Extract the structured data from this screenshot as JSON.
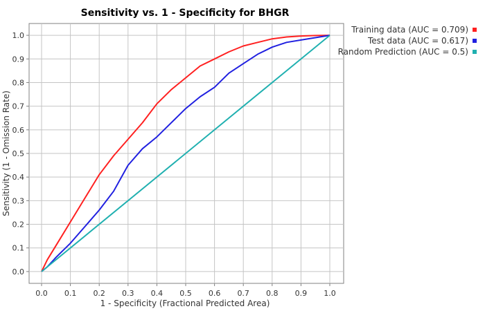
{
  "chart_data": {
    "type": "line",
    "title": "Sensitivity vs. 1 - Specificity for BHGR",
    "xlabel": "1 - Specificity  (Fractional Predicted Area)",
    "ylabel": "Sensitivity  (1 - Omission Rate)",
    "xlim": [
      0.0,
      1.0
    ],
    "ylim": [
      -0.05,
      1.05
    ],
    "x_ticks": [
      "0.0",
      "0.1",
      "0.2",
      "0.3",
      "0.4",
      "0.5",
      "0.6",
      "0.7",
      "0.8",
      "0.9",
      "1.0"
    ],
    "y_ticks": [
      "0.0",
      "0.1",
      "0.2",
      "0.3",
      "0.4",
      "0.5",
      "0.6",
      "0.7",
      "0.8",
      "0.9",
      "1.0"
    ],
    "grid": true,
    "legend_position": "right",
    "series": [
      {
        "name": "Training data (AUC = 0.709)",
        "color": "#ff2020",
        "points": [
          [
            0,
            0
          ],
          [
            0.02,
            0.05
          ],
          [
            0.05,
            0.11
          ],
          [
            0.1,
            0.21
          ],
          [
            0.15,
            0.31
          ],
          [
            0.2,
            0.41
          ],
          [
            0.25,
            0.49
          ],
          [
            0.3,
            0.56
          ],
          [
            0.35,
            0.63
          ],
          [
            0.4,
            0.71
          ],
          [
            0.45,
            0.77
          ],
          [
            0.5,
            0.82
          ],
          [
            0.55,
            0.87
          ],
          [
            0.6,
            0.9
          ],
          [
            0.65,
            0.93
          ],
          [
            0.7,
            0.955
          ],
          [
            0.75,
            0.97
          ],
          [
            0.8,
            0.985
          ],
          [
            0.85,
            0.993
          ],
          [
            0.9,
            0.997
          ],
          [
            0.95,
            0.999
          ],
          [
            1.0,
            1.0
          ]
        ]
      },
      {
        "name": "Test data (AUC = 0.617)",
        "color": "#2020e0",
        "points": [
          [
            0,
            0
          ],
          [
            0.02,
            0.02
          ],
          [
            0.05,
            0.06
          ],
          [
            0.1,
            0.12
          ],
          [
            0.15,
            0.19
          ],
          [
            0.2,
            0.26
          ],
          [
            0.25,
            0.34
          ],
          [
            0.3,
            0.45
          ],
          [
            0.35,
            0.52
          ],
          [
            0.4,
            0.57
          ],
          [
            0.45,
            0.63
          ],
          [
            0.5,
            0.69
          ],
          [
            0.55,
            0.74
          ],
          [
            0.6,
            0.78
          ],
          [
            0.65,
            0.84
          ],
          [
            0.7,
            0.88
          ],
          [
            0.75,
            0.92
          ],
          [
            0.8,
            0.95
          ],
          [
            0.85,
            0.97
          ],
          [
            0.9,
            0.98
          ],
          [
            0.95,
            0.99
          ],
          [
            1.0,
            1.0
          ]
        ]
      },
      {
        "name": "Random Prediction (AUC = 0.5)",
        "color": "#20b0b0",
        "points": [
          [
            0,
            0
          ],
          [
            1.0,
            1.0
          ]
        ]
      }
    ]
  }
}
